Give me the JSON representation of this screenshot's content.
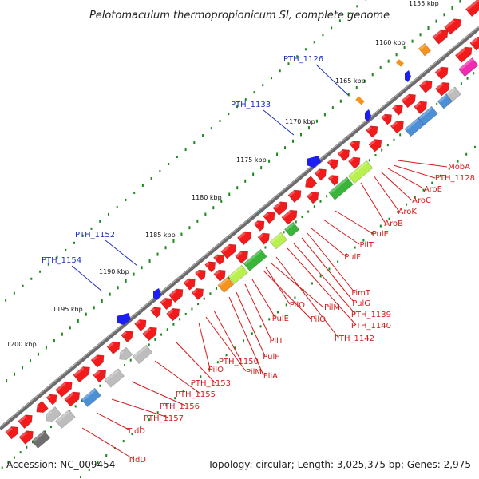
{
  "title": "Pelotomaculum thermopropionicum SI, complete genome",
  "accession": "Accession: NC_009454",
  "topology": "Topology: circular; Length: 3,025,375 bp; Genes: 2,975",
  "colors": {
    "backbone": "#6b6b6b",
    "cds": "#f21a1a",
    "label_red": "#d61a1a",
    "label_blue": "#1f2fc4",
    "tick_green": "#1a8a1a",
    "flag_blue": "#1c1ef2",
    "orange": "#f5931c",
    "magenta": "#f22ab0",
    "steel_blue": "#4d8fd6",
    "green": "#39b539",
    "light_green": "#b8f04d",
    "olive": "#6f9a1d",
    "grey": "#bdbdbd",
    "dark_grey": "#6e6e6e",
    "pink": "#f08a8a"
  },
  "kbp_labels": [
    "1155 kbp",
    "1160 kbp",
    "1165 kbp",
    "1170 kbp",
    "1175 kbp",
    "1180 kbp",
    "1185 kbp",
    "1190 kbp",
    "1195 kbp",
    "1200 kbp"
  ],
  "blue_labels": [
    "PTH_1126",
    "PTH_1133",
    "PTH_1152",
    "PTH_1154"
  ],
  "red_labels": [
    "MobA",
    "PTH_1128",
    "AroE",
    "AroC",
    "AroK",
    "AroB",
    "PulE",
    "PilT",
    "PulF",
    "FimT",
    "PulG",
    "PTH_1139",
    "PTH_1140",
    "PTH_1142",
    "PilO",
    "PilM",
    "PilO",
    "PulE",
    "PilT",
    "PulF",
    "PTH_1150",
    "FliA",
    "PilM",
    "PilO",
    "PTH_1153",
    "PTH_1155",
    "PTH_1156",
    "PTH_1157",
    "TldD",
    "TldD"
  ]
}
